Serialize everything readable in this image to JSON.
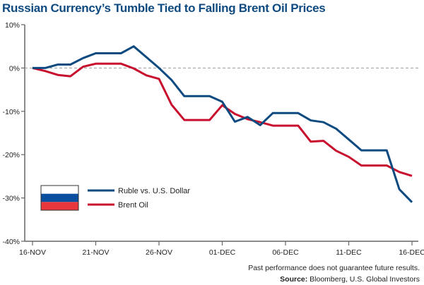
{
  "chart_data": {
    "type": "line",
    "title": "Russian Currency’s Tumble Tied to Falling Brent Oil Prices",
    "x_ticks": [
      "16-NOV",
      "21-NOV",
      "26-NOV",
      "01-DEC",
      "06-DEC",
      "11-DEC",
      "16-DEC"
    ],
    "x": [
      "16-NOV",
      "17-NOV",
      "18-NOV",
      "19-NOV",
      "20-NOV",
      "21-NOV",
      "22-NOV",
      "23-NOV",
      "24-NOV",
      "25-NOV",
      "26-NOV",
      "27-NOV",
      "28-NOV",
      "29-NOV",
      "30-NOV",
      "01-DEC",
      "02-DEC",
      "03-DEC",
      "04-DEC",
      "05-DEC",
      "06-DEC",
      "07-DEC",
      "08-DEC",
      "09-DEC",
      "10-DEC",
      "11-DEC",
      "12-DEC",
      "13-DEC",
      "14-DEC",
      "15-DEC",
      "16-DEC"
    ],
    "y_ticks": [
      "10%",
      "0%",
      "-10%",
      "-20%",
      "-30%",
      "-40%"
    ],
    "ylim": [
      -40,
      10
    ],
    "grid": false,
    "zero_line": "dashed",
    "legend_placement": "bottom-left",
    "series": [
      {
        "name": "Ruble vs. U.S. Dollar",
        "color": "#0d4a80",
        "values": [
          0,
          0,
          0.8,
          0.8,
          2.3,
          3.4,
          3.4,
          3.4,
          5.0,
          2.5,
          0,
          -2.8,
          -6.5,
          -6.5,
          -6.5,
          -7.8,
          -12.4,
          -11.3,
          -13.2,
          -10.4,
          -10.4,
          -10.4,
          -12.1,
          -12.5,
          -14.0,
          -16.5,
          -19.0,
          -19.0,
          -19.0,
          -28.0,
          -31.0
        ]
      },
      {
        "name": "Brent Oil",
        "color": "#c8102e",
        "values": [
          0,
          -0.7,
          -1.6,
          -1.9,
          0.3,
          1.0,
          1.0,
          1.0,
          -0.1,
          -1.7,
          -2.5,
          -8.5,
          -12.0,
          -12.0,
          -12.0,
          -8.6,
          -10.6,
          -11.8,
          -12.5,
          -13.3,
          -13.3,
          -13.3,
          -17.0,
          -16.8,
          -19.1,
          -20.5,
          -22.5,
          -22.5,
          -22.5,
          -24.0,
          -24.9
        ]
      }
    ]
  },
  "flag_colors": [
    "#ffffff",
    "#0a4ea0",
    "#e8383d"
  ],
  "footer": {
    "disclaimer": "Past performance does not guarantee future results.",
    "source_label": "Source:",
    "source_text": " Bloomberg, U.S. Global Investors"
  }
}
